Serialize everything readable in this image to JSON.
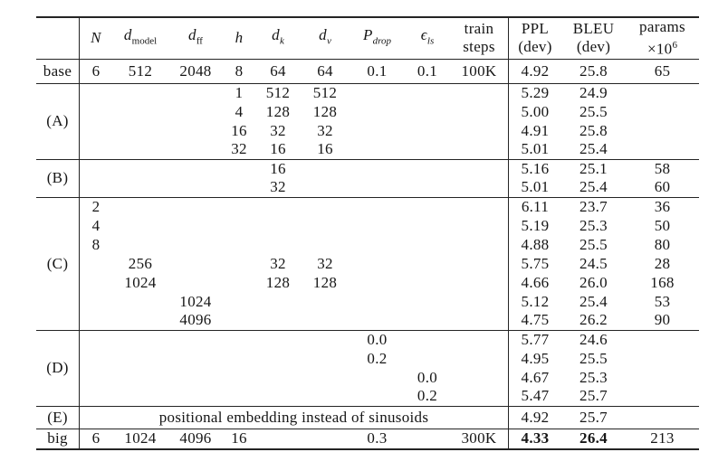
{
  "page": {
    "background": "#ffffff",
    "text_color": "#161616",
    "rule_color": "#242424",
    "description": "Transformer architecture variations results table"
  },
  "table": {
    "columns": [
      {
        "id": "label",
        "vline": true,
        "header": {
          "type": "empty"
        }
      },
      {
        "id": "n",
        "header": {
          "type": "math",
          "base": "N",
          "italic": true
        }
      },
      {
        "id": "d_model",
        "header": {
          "type": "math",
          "base": "d",
          "italic": true,
          "sub": "model",
          "subItalic": false
        }
      },
      {
        "id": "d_ff",
        "header": {
          "type": "math",
          "base": "d",
          "italic": true,
          "sub": "ff",
          "subItalic": false
        }
      },
      {
        "id": "h",
        "header": {
          "type": "math",
          "base": "h",
          "italic": true
        }
      },
      {
        "id": "d_k",
        "header": {
          "type": "math",
          "base": "d",
          "italic": true,
          "sub": "k",
          "subItalic": true
        }
      },
      {
        "id": "d_v",
        "header": {
          "type": "math",
          "base": "d",
          "italic": true,
          "sub": "v",
          "subItalic": true
        }
      },
      {
        "id": "p_drop",
        "header": {
          "type": "math",
          "base": "P",
          "italic": true,
          "sub": "drop",
          "subItalic": true
        }
      },
      {
        "id": "eps_ls",
        "header": {
          "type": "math",
          "base": "ϵ",
          "italic": true,
          "sub": "ls",
          "subItalic": true
        }
      },
      {
        "id": "train_steps",
        "vline": true,
        "header": {
          "type": "twoline",
          "line1": "train",
          "line2": "steps"
        }
      },
      {
        "id": "ppl",
        "header": {
          "type": "twoline",
          "line1": "PPL",
          "line2": "(dev)"
        }
      },
      {
        "id": "bleu",
        "header": {
          "type": "twoline",
          "line1": "BLEU",
          "line2": "(dev)"
        }
      },
      {
        "id": "params",
        "header": {
          "type": "twoline",
          "line1": "params",
          "line2": "×10",
          "line2_sup": "6"
        }
      }
    ],
    "sections": [
      {
        "id": "base",
        "label": "base",
        "rows": [
          {
            "cells": {
              "n": "6",
              "d_model": "512",
              "d_ff": "2048",
              "h": "8",
              "d_k": "64",
              "d_v": "64",
              "p_drop": "0.1",
              "eps_ls": "0.1",
              "train_steps": "100K",
              "ppl": "4.92",
              "bleu": "25.8",
              "params": "65"
            }
          }
        ]
      },
      {
        "id": "A",
        "label": "(A)",
        "rows": [
          {
            "cells": {
              "h": "1",
              "d_k": "512",
              "d_v": "512",
              "ppl": "5.29",
              "bleu": "24.9"
            }
          },
          {
            "cells": {
              "h": "4",
              "d_k": "128",
              "d_v": "128",
              "ppl": "5.00",
              "bleu": "25.5"
            }
          },
          {
            "cells": {
              "h": "16",
              "d_k": "32",
              "d_v": "32",
              "ppl": "4.91",
              "bleu": "25.8"
            }
          },
          {
            "cells": {
              "h": "32",
              "d_k": "16",
              "d_v": "16",
              "ppl": "5.01",
              "bleu": "25.4"
            }
          }
        ]
      },
      {
        "id": "B",
        "label": "(B)",
        "rows": [
          {
            "cells": {
              "d_k": "16",
              "ppl": "5.16",
              "bleu": "25.1",
              "params": "58"
            }
          },
          {
            "cells": {
              "d_k": "32",
              "ppl": "5.01",
              "bleu": "25.4",
              "params": "60"
            }
          }
        ]
      },
      {
        "id": "C",
        "label": "(C)",
        "rows": [
          {
            "cells": {
              "n": "2",
              "ppl": "6.11",
              "bleu": "23.7",
              "params": "36"
            }
          },
          {
            "cells": {
              "n": "4",
              "ppl": "5.19",
              "bleu": "25.3",
              "params": "50"
            }
          },
          {
            "cells": {
              "n": "8",
              "ppl": "4.88",
              "bleu": "25.5",
              "params": "80"
            }
          },
          {
            "cells": {
              "d_model": "256",
              "d_k": "32",
              "d_v": "32",
              "ppl": "5.75",
              "bleu": "24.5",
              "params": "28"
            }
          },
          {
            "cells": {
              "d_model": "1024",
              "d_k": "128",
              "d_v": "128",
              "ppl": "4.66",
              "bleu": "26.0",
              "params": "168"
            }
          },
          {
            "cells": {
              "d_ff": "1024",
              "ppl": "5.12",
              "bleu": "25.4",
              "params": "53"
            }
          },
          {
            "cells": {
              "d_ff": "4096",
              "ppl": "4.75",
              "bleu": "26.2",
              "params": "90"
            }
          }
        ]
      },
      {
        "id": "D",
        "label": "(D)",
        "rows": [
          {
            "cells": {
              "p_drop": "0.0",
              "ppl": "5.77",
              "bleu": "24.6"
            }
          },
          {
            "cells": {
              "p_drop": "0.2",
              "ppl": "4.95",
              "bleu": "25.5"
            }
          },
          {
            "cells": {
              "eps_ls": "0.0",
              "ppl": "4.67",
              "bleu": "25.3"
            }
          },
          {
            "cells": {
              "eps_ls": "0.2",
              "ppl": "5.47",
              "bleu": "25.7"
            }
          }
        ]
      },
      {
        "id": "E",
        "label": "(E)",
        "rows": [
          {
            "span_text": "positional embedding instead of sinusoids",
            "cells": {
              "ppl": "4.92",
              "bleu": "25.7"
            }
          }
        ]
      },
      {
        "id": "big",
        "label": "big",
        "rows": [
          {
            "cells": {
              "n": "6",
              "d_model": "1024",
              "d_ff": "4096",
              "h": "16",
              "p_drop": "0.3",
              "train_steps": "300K",
              "ppl": "4.33",
              "bleu": "26.4",
              "params": "213"
            },
            "bold": [
              "ppl",
              "bleu"
            ]
          }
        ]
      }
    ]
  }
}
